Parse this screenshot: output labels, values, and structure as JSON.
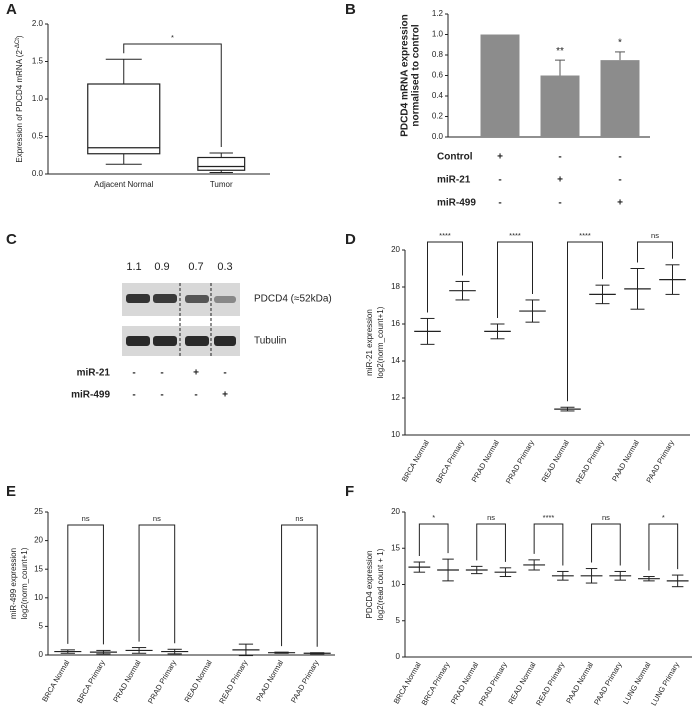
{
  "chart_data": [
    {
      "type": "box",
      "panel": "A",
      "ylabel": "Expression of PDCD4 mRNA (2",
      "ylabel_superscript": "-ΔCt",
      "ylabel_end": ")",
      "categories": [
        "Adjacent Normal",
        "Tumor"
      ],
      "boxes": [
        {
          "min": 0.13,
          "q1": 0.27,
          "median": 0.35,
          "q3": 1.2,
          "max": 1.53
        },
        {
          "min": 0.02,
          "q1": 0.05,
          "median": 0.1,
          "q3": 0.22,
          "max": 0.28
        }
      ],
      "significance": [
        "*",
        null
      ],
      "ylim": [
        0,
        2
      ],
      "yticks": [
        {
          "value": 0,
          "label": "0.0"
        },
        {
          "value": 0.5,
          "label": "0.5"
        },
        {
          "value": 1,
          "label": "1.0"
        },
        {
          "value": 1.5,
          "label": "1.5"
        },
        {
          "value": 2,
          "label": "2.0"
        }
      ]
    },
    {
      "type": "bar",
      "panel": "B",
      "ylabel": [
        "PDCD4 mRNA expression",
        "normalised to control"
      ],
      "values": [
        1.0,
        0.6,
        0.75
      ],
      "errors": [
        0,
        0.15,
        0.08
      ],
      "color": "#8c8c8c",
      "value_annotations": [
        null,
        "**",
        "*"
      ],
      "conditions": [
        {
          "name": "Control",
          "signs": [
            "+",
            "-",
            "-"
          ]
        },
        {
          "name": "miR-21",
          "signs": [
            "-",
            "+",
            "-"
          ]
        },
        {
          "name": "miR-499",
          "signs": [
            "-",
            "-",
            "+"
          ]
        }
      ],
      "ylim": [
        0,
        1.2
      ],
      "yticks": [
        {
          "value": 0,
          "label": "0.0"
        },
        {
          "value": 0.2,
          "label": "0.2"
        },
        {
          "value": 0.4,
          "label": "0.4"
        },
        {
          "value": 0.6,
          "label": "0.6"
        },
        {
          "value": 0.8,
          "label": "0.8"
        },
        {
          "value": 1,
          "label": "1.0"
        },
        {
          "value": 1.2,
          "label": "1.2"
        }
      ]
    },
    {
      "type": "blot",
      "panel": "C",
      "values": [
        1.1,
        0.9,
        0.7,
        0.3
      ],
      "band_labels": [
        "PDCD4 (≈52kDa)",
        "Tubulin"
      ],
      "conditions": [
        {
          "name": "miR-21",
          "signs": [
            "-",
            "-",
            "+",
            "-"
          ]
        },
        {
          "name": "miR-499",
          "signs": [
            "-",
            "-",
            "-",
            "+"
          ]
        }
      ]
    },
    {
      "type": "dot",
      "panel": "D",
      "ylabel": [
        "miR-21 expression",
        "log2(norm_count+1)"
      ],
      "categories": [
        "BRCA Normal",
        "BRCA Primary",
        "PRAD Normal",
        "PRAD Primary",
        "READ Normal",
        "READ Primary",
        "PAAD Normal",
        "PAAD Primary"
      ],
      "means": [
        15.6,
        17.8,
        15.6,
        16.7,
        11.4,
        17.6,
        17.9,
        18.4
      ],
      "sd": [
        0.7,
        0.5,
        0.4,
        0.6,
        0.1,
        0.5,
        1.1,
        0.8
      ],
      "significance": [
        "****",
        null,
        "****",
        null,
        "****",
        null,
        "ns",
        null
      ],
      "ylim": [
        10,
        20
      ],
      "yticks": [
        10,
        12,
        14,
        16,
        18,
        20
      ]
    },
    {
      "type": "dot",
      "panel": "E",
      "ylabel": [
        "miR-499 expression",
        "log2(norm_count+1)"
      ],
      "categories": [
        "BRCA Normal",
        "BRCA Primary",
        "PRAD Normal",
        "PRAD Primary",
        "READ Normal",
        "READ Primary",
        "PAAD Normal",
        "PAAD Primary"
      ],
      "means": [
        0.6,
        0.5,
        0.8,
        0.6,
        null,
        0.9,
        0.4,
        0.3
      ],
      "sd": [
        0.3,
        0.3,
        0.5,
        0.4,
        null,
        1.0,
        0.1,
        0.1
      ],
      "significance": [
        "ns",
        null,
        "ns",
        null,
        null,
        null,
        "ns",
        null
      ],
      "ylim": [
        0,
        25
      ],
      "yticks": [
        0,
        5,
        10,
        15,
        20,
        25
      ]
    },
    {
      "type": "dot",
      "panel": "F",
      "ylabel": [
        "PDCD4 expression",
        "log2(read count + 1)"
      ],
      "categories": [
        "BRCA Normal",
        "BRCA Primary",
        "PRAD Normal",
        "PRAD Primary",
        "READ Normal",
        "READ Primary",
        "PAAD Normal",
        "PAAD Primary",
        "LUNG Normal",
        "LUNG Primary"
      ],
      "means": [
        12.4,
        12,
        12,
        11.7,
        12.7,
        11.2,
        11.2,
        11.2,
        10.8,
        10.5
      ],
      "sd": [
        0.7,
        1.5,
        0.5,
        0.6,
        0.7,
        0.6,
        1.0,
        0.6,
        0.3,
        0.8
      ],
      "significance": [
        "*",
        null,
        "ns",
        null,
        "****",
        null,
        "ns",
        null,
        "*",
        null
      ],
      "ylim": [
        0,
        20
      ],
      "yticks": [
        0,
        5,
        10,
        15,
        20
      ]
    }
  ]
}
